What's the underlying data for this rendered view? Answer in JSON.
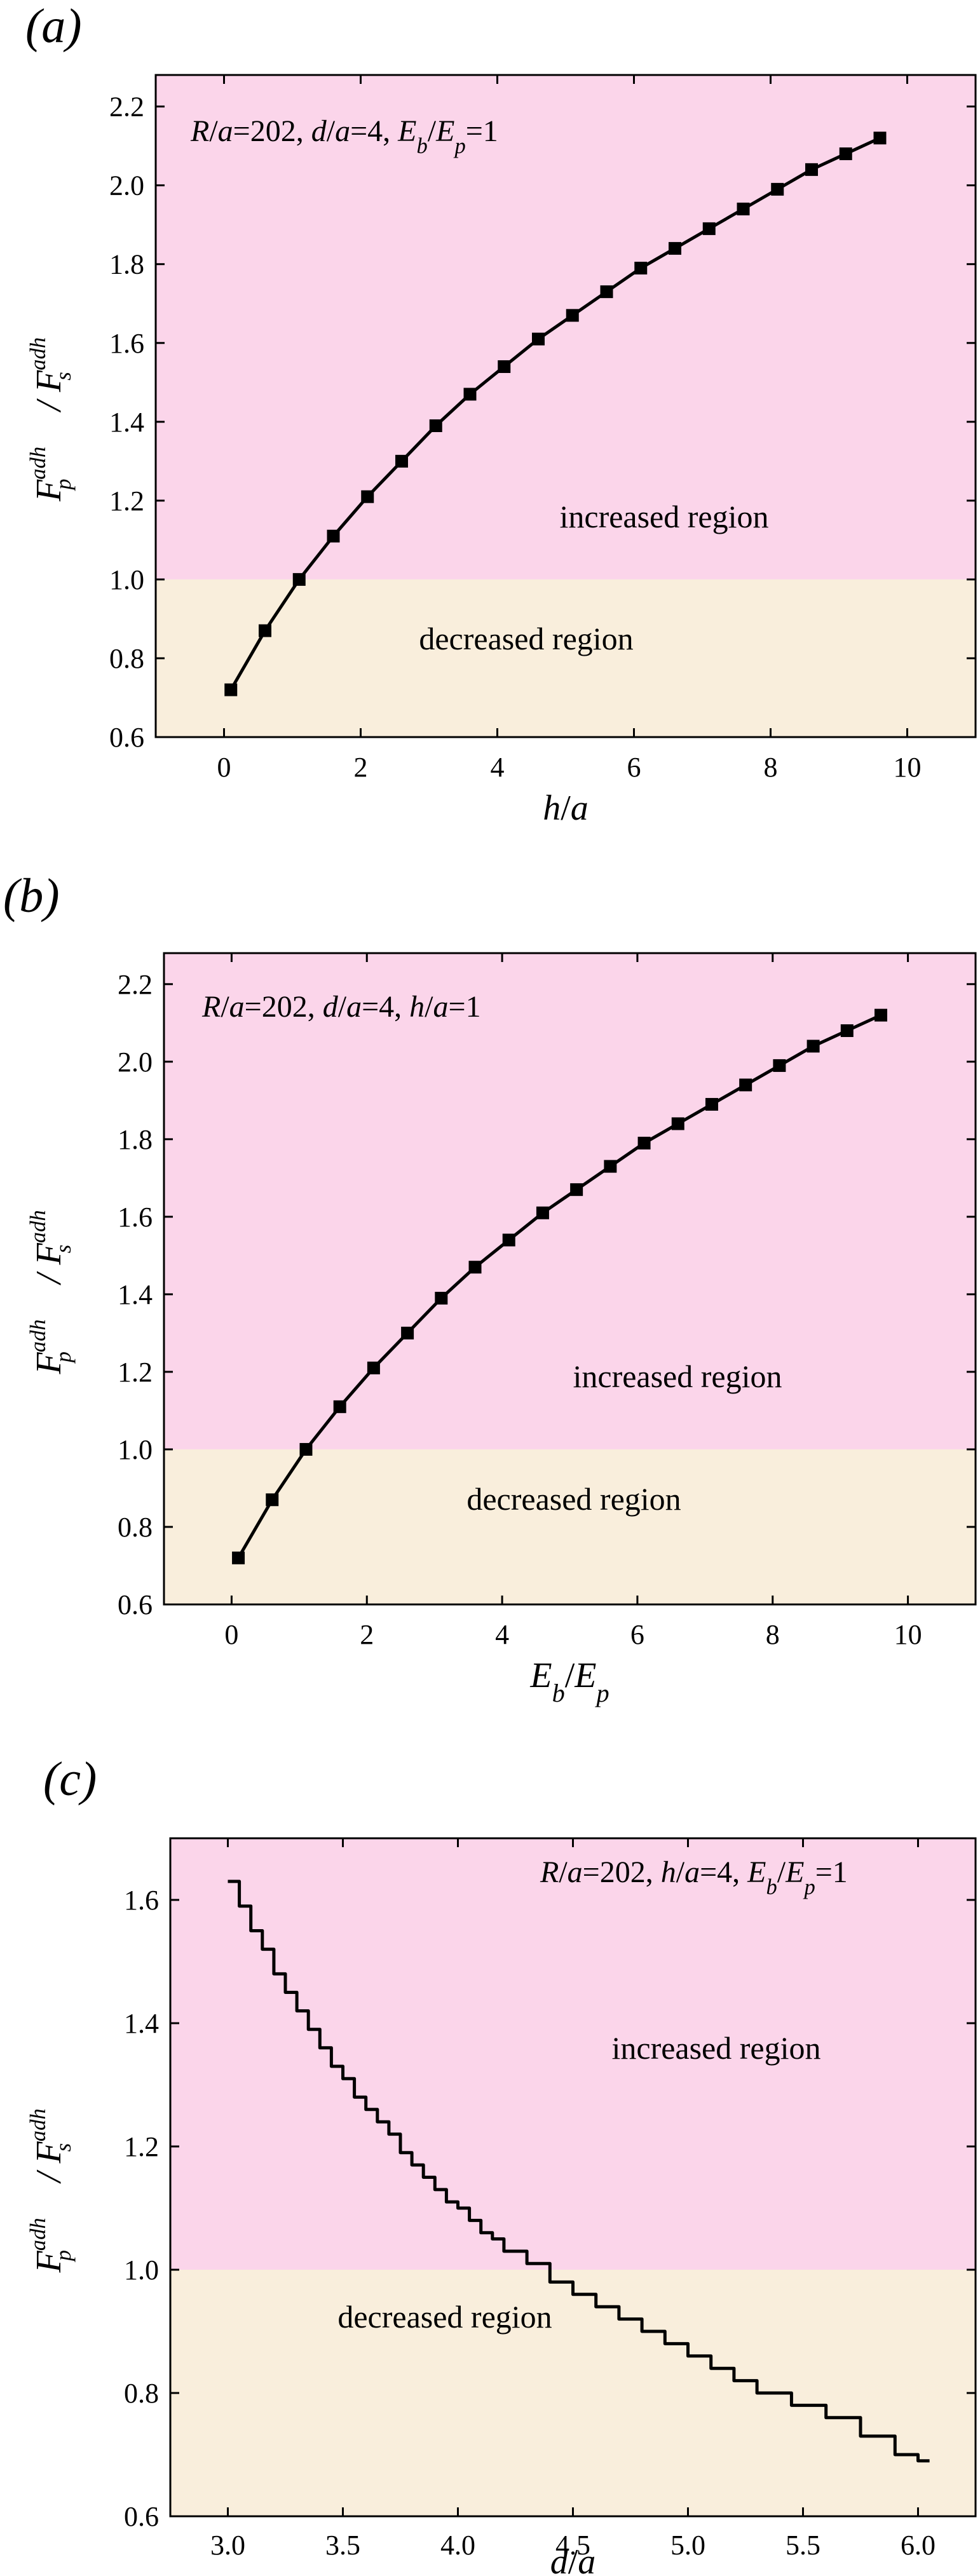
{
  "colors": {
    "increased": "#fbd5ea",
    "decreased": "#f9eedc",
    "line": "#000000"
  },
  "chart_data": [
    {
      "type": "line",
      "panel_label": "(a)",
      "annotation_parts": [
        {
          "t": "R",
          "i": true
        },
        {
          "t": "/",
          "i": false
        },
        {
          "t": "a",
          "i": true
        },
        {
          "t": "=202, ",
          "i": false
        },
        {
          "t": "d",
          "i": true
        },
        {
          "t": "/",
          "i": false
        },
        {
          "t": "a",
          "i": true
        },
        {
          "t": "=4, ",
          "i": false
        },
        {
          "t": "E",
          "i": true
        },
        {
          "t": "b",
          "i": true,
          "sub": true
        },
        {
          "t": "/",
          "i": false
        },
        {
          "t": "E",
          "i": true
        },
        {
          "t": "p",
          "i": true,
          "sub": true
        },
        {
          "t": "=1",
          "i": false
        }
      ],
      "xlabel_parts": [
        {
          "t": "h",
          "i": true
        },
        {
          "t": "/",
          "i": false
        },
        {
          "t": "a",
          "i": true
        }
      ],
      "ylabel": {
        "num": "F",
        "num_sub": "p",
        "num_sup": "adh",
        "den": "F",
        "den_sub": "s",
        "den_sup": "adh"
      },
      "xlim": [
        -1,
        11
      ],
      "ylim": [
        0.6,
        2.28
      ],
      "xticks": [
        "0",
        "2",
        "4",
        "6",
        "8",
        "10"
      ],
      "xtick_values": [
        0,
        2,
        4,
        6,
        8,
        10
      ],
      "yticks": [
        "0.6",
        "0.8",
        "1.0",
        "1.2",
        "1.4",
        "1.6",
        "1.8",
        "2.0",
        "2.2"
      ],
      "ytick_values": [
        0.6,
        0.8,
        1.0,
        1.2,
        1.4,
        1.6,
        1.8,
        2.0,
        2.2
      ],
      "threshold": 1.0,
      "region_labels": {
        "increased": "increased region",
        "decreased": "decreased region"
      },
      "markers": true,
      "step": false,
      "x": [
        0.1,
        0.6,
        1.1,
        1.6,
        2.1,
        2.6,
        3.1,
        3.6,
        4.1,
        4.6,
        5.1,
        5.6,
        6.1,
        6.6,
        7.1,
        7.6,
        8.1,
        8.6,
        9.1,
        9.6
      ],
      "y": [
        0.72,
        0.87,
        1.0,
        1.11,
        1.21,
        1.3,
        1.39,
        1.47,
        1.54,
        1.61,
        1.67,
        1.73,
        1.79,
        1.84,
        1.89,
        1.94,
        1.99,
        2.04,
        2.08,
        2.12
      ]
    },
    {
      "type": "line",
      "panel_label": "(b)",
      "annotation_parts": [
        {
          "t": "R",
          "i": true
        },
        {
          "t": "/",
          "i": false
        },
        {
          "t": "a",
          "i": true
        },
        {
          "t": "=202, ",
          "i": false
        },
        {
          "t": "d",
          "i": true
        },
        {
          "t": "/",
          "i": false
        },
        {
          "t": "a",
          "i": true
        },
        {
          "t": "=4, ",
          "i": false
        },
        {
          "t": "h",
          "i": true
        },
        {
          "t": "/",
          "i": false
        },
        {
          "t": "a",
          "i": true
        },
        {
          "t": "=1",
          "i": false
        }
      ],
      "xlabel_parts": [
        {
          "t": "E",
          "i": true
        },
        {
          "t": "b",
          "i": true,
          "sub": true
        },
        {
          "t": "/",
          "i": false
        },
        {
          "t": "E",
          "i": true
        },
        {
          "t": "p",
          "i": true,
          "sub": true
        }
      ],
      "ylabel": {
        "num": "F",
        "num_sub": "p",
        "num_sup": "adh",
        "den": "F",
        "den_sub": "s",
        "den_sup": "adh"
      },
      "xlim": [
        -1,
        11
      ],
      "ylim": [
        0.6,
        2.28
      ],
      "xticks": [
        "0",
        "2",
        "4",
        "6",
        "8",
        "10"
      ],
      "xtick_values": [
        0,
        2,
        4,
        6,
        8,
        10
      ],
      "yticks": [
        "0.6",
        "0.8",
        "1.0",
        "1.2",
        "1.4",
        "1.6",
        "1.8",
        "2.0",
        "2.2"
      ],
      "ytick_values": [
        0.6,
        0.8,
        1.0,
        1.2,
        1.4,
        1.6,
        1.8,
        2.0,
        2.2
      ],
      "threshold": 1.0,
      "region_labels": {
        "increased": "increased region",
        "decreased": "decreased region"
      },
      "markers": true,
      "step": false,
      "x": [
        0.1,
        0.6,
        1.1,
        1.6,
        2.1,
        2.6,
        3.1,
        3.6,
        4.1,
        4.6,
        5.1,
        5.6,
        6.1,
        6.6,
        7.1,
        7.6,
        8.1,
        8.6,
        9.1,
        9.6
      ],
      "y": [
        0.72,
        0.87,
        1.0,
        1.11,
        1.21,
        1.3,
        1.39,
        1.47,
        1.54,
        1.61,
        1.67,
        1.73,
        1.79,
        1.84,
        1.89,
        1.94,
        1.99,
        2.04,
        2.08,
        2.12
      ]
    },
    {
      "type": "line",
      "panel_label": "(c)",
      "annotation_parts": [
        {
          "t": "R",
          "i": true
        },
        {
          "t": "/",
          "i": false
        },
        {
          "t": "a",
          "i": true
        },
        {
          "t": "=202, ",
          "i": false
        },
        {
          "t": "h",
          "i": true
        },
        {
          "t": "/",
          "i": false
        },
        {
          "t": "a",
          "i": true
        },
        {
          "t": "=4, ",
          "i": false
        },
        {
          "t": "E",
          "i": true
        },
        {
          "t": "b",
          "i": true,
          "sub": true
        },
        {
          "t": "/",
          "i": false
        },
        {
          "t": "E",
          "i": true
        },
        {
          "t": "p",
          "i": true,
          "sub": true
        },
        {
          "t": "=1",
          "i": false
        }
      ],
      "xlabel_parts": [
        {
          "t": "d",
          "i": true
        },
        {
          "t": "/",
          "i": false
        },
        {
          "t": "a",
          "i": true
        }
      ],
      "ylabel": {
        "num": "F",
        "num_sub": "p",
        "num_sup": "adh",
        "den": "F",
        "den_sub": "s",
        "den_sup": "adh"
      },
      "xlim": [
        2.75,
        6.25
      ],
      "ylim": [
        0.6,
        1.7
      ],
      "xticks": [
        "3.0",
        "3.5",
        "4.0",
        "4.5",
        "5.0",
        "5.5",
        "6.0"
      ],
      "xtick_values": [
        3.0,
        3.5,
        4.0,
        4.5,
        5.0,
        5.5,
        6.0
      ],
      "yticks": [
        "0.6",
        "0.8",
        "1.0",
        "1.2",
        "1.4",
        "1.6"
      ],
      "ytick_values": [
        0.6,
        0.8,
        1.0,
        1.2,
        1.4,
        1.6
      ],
      "threshold": 1.0,
      "region_labels": {
        "increased": "increased region",
        "decreased": "decreased region"
      },
      "markers": false,
      "step": true,
      "x": [
        3.0,
        3.05,
        3.1,
        3.15,
        3.2,
        3.25,
        3.3,
        3.35,
        3.4,
        3.45,
        3.5,
        3.55,
        3.6,
        3.65,
        3.7,
        3.75,
        3.8,
        3.85,
        3.9,
        3.95,
        4.0,
        4.05,
        4.1,
        4.15,
        4.2,
        4.3,
        4.4,
        4.5,
        4.6,
        4.7,
        4.8,
        4.9,
        5.0,
        5.1,
        5.2,
        5.3,
        5.45,
        5.6,
        5.75,
        5.9,
        6.0
      ],
      "y": [
        1.63,
        1.59,
        1.55,
        1.52,
        1.48,
        1.45,
        1.42,
        1.39,
        1.36,
        1.33,
        1.31,
        1.28,
        1.26,
        1.24,
        1.22,
        1.19,
        1.17,
        1.15,
        1.13,
        1.11,
        1.1,
        1.08,
        1.06,
        1.05,
        1.03,
        1.01,
        0.98,
        0.96,
        0.94,
        0.92,
        0.9,
        0.88,
        0.86,
        0.84,
        0.82,
        0.8,
        0.78,
        0.76,
        0.73,
        0.7,
        0.69
      ]
    }
  ]
}
